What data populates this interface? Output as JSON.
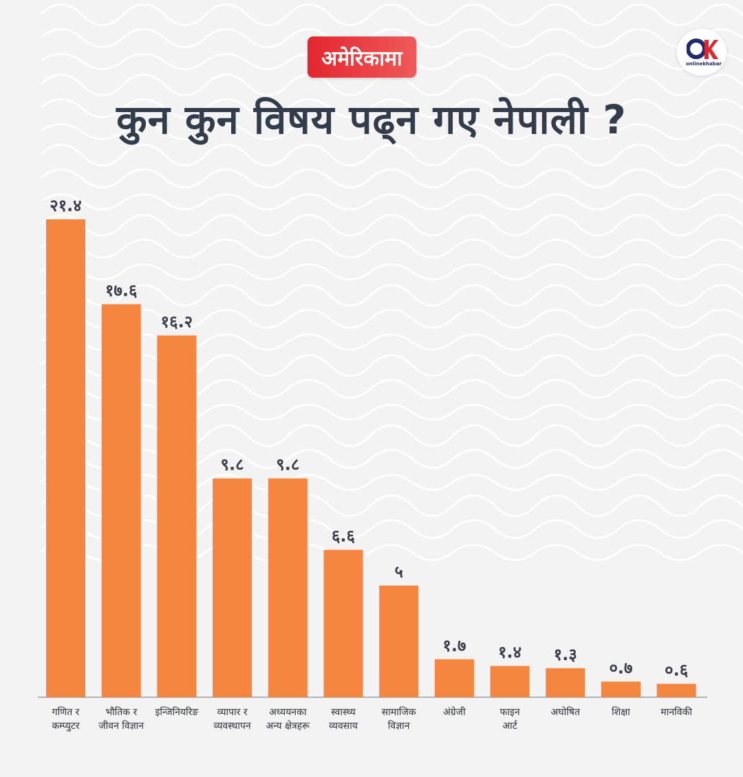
{
  "header": {
    "badge": "अमेरिकामा",
    "title": "कुन कुन विषय पढ्न गए नेपाली ?"
  },
  "logo": {
    "text": "onlinekhabar",
    "icon": "onlinekhabar-logo-icon"
  },
  "colors": {
    "bar": "#f5853f",
    "badge": "#e3262e",
    "title": "#323c4a",
    "background": "#f3f3f3"
  },
  "chart_data": {
    "type": "bar",
    "title": "कुन कुन विषय पढ्न गए नेपाली ?",
    "xlabel": "",
    "ylabel": "",
    "ylim": [
      0,
      21.4
    ],
    "grid": false,
    "categories": [
      [
        "गणित र",
        "कम्प्युटर"
      ],
      [
        "भौतिक र",
        "जीवन विज्ञान"
      ],
      [
        "इन्जिनियरिङ"
      ],
      [
        "व्यापार र",
        "व्यवस्थापन"
      ],
      [
        "अध्ययनका",
        "अन्य क्षेत्रहरू"
      ],
      [
        "स्वास्थ्य",
        "व्यवसाय"
      ],
      [
        "सामाजिक",
        "विज्ञान"
      ],
      [
        "अंग्रेजी"
      ],
      [
        "फाइन",
        "आर्ट"
      ],
      [
        "अघोषित"
      ],
      [
        "शिक्षा"
      ],
      [
        "मानविकी"
      ]
    ],
    "values": [
      21.4,
      17.6,
      16.2,
      9.8,
      9.8,
      6.6,
      5,
      1.7,
      1.4,
      1.3,
      0.7,
      0.6
    ],
    "value_labels": [
      "२१.४",
      "१७.६",
      "१६.२",
      "९.८",
      "९.८",
      "६.६",
      "५",
      "१.७",
      "१.४",
      "१.३",
      "०.७",
      "०.६"
    ]
  }
}
